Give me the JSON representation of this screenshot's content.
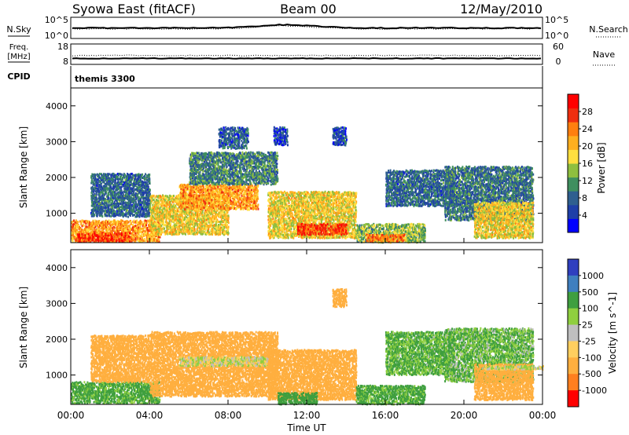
{
  "header": {
    "station": "Syowa East (fitACF)",
    "beam": "Beam 00",
    "date": "12/May/2010"
  },
  "top_panels": {
    "nsky_label": "N.Sky",
    "nsky_ticks": [
      "10^5",
      "10^0"
    ],
    "nsearch_label": "N.Search",
    "nsearch_ticks": [
      "10^5",
      "10^0"
    ],
    "freq_label_1": "Freq.",
    "freq_label_2": "[MHz]",
    "freq_ticks": [
      "18",
      "8"
    ],
    "nave_label": "Nave",
    "nave_ticks": [
      "60",
      "0"
    ],
    "cpid_label": "CPID",
    "cpid_value": "themis 3300"
  },
  "colors": {
    "power_scale": [
      "#0000ff",
      "#1f3fa8",
      "#2f5f8f",
      "#3f8f5f",
      "#8fbf3f",
      "#ffdf3f",
      "#ffaf1f",
      "#ff7f0f",
      "#ef2f0f",
      "#ff0000"
    ],
    "velocity_scale": [
      "#2f3fbf",
      "#3f7fbf",
      "#3f9f3f",
      "#8fcf3f",
      "#bfbfbf",
      "#ffcf5f",
      "#ffaf3f",
      "#ff7f1f",
      "#ff0000"
    ]
  },
  "chart_data": [
    {
      "type": "heatmap",
      "name": "power",
      "ylabel": "Slant Range [km]",
      "colorbar_label": "Power [dB]",
      "colorbar_ticks": [
        "28",
        "24",
        "20",
        "16",
        "12",
        "8",
        "4"
      ],
      "colorbar_range": [
        0,
        32
      ],
      "x_range_hours": [
        0,
        24
      ],
      "y_range_km": [
        180,
        4500
      ],
      "y_ticks": [
        "1000",
        "2000",
        "3000",
        "4000"
      ],
      "regions": [
        {
          "t": [
            0.0,
            4.5
          ],
          "r": [
            200,
            800
          ],
          "v": 22
        },
        {
          "t": [
            0.3,
            3.0
          ],
          "r": [
            200,
            450
          ],
          "v": 27
        },
        {
          "t": [
            1.0,
            4.0
          ],
          "r": [
            900,
            2100
          ],
          "v": 8
        },
        {
          "t": [
            4.0,
            8.0
          ],
          "r": [
            400,
            1500
          ],
          "v": 18
        },
        {
          "t": [
            5.5,
            9.5
          ],
          "r": [
            1100,
            1800
          ],
          "v": 22
        },
        {
          "t": [
            6.0,
            10.5
          ],
          "r": [
            1800,
            2700
          ],
          "v": 10
        },
        {
          "t": [
            10.0,
            14.5
          ],
          "r": [
            300,
            1600
          ],
          "v": 18
        },
        {
          "t": [
            11.5,
            14.0
          ],
          "r": [
            400,
            700
          ],
          "v": 27
        },
        {
          "t": [
            10.3,
            11.0
          ],
          "r": [
            2900,
            3400
          ],
          "v": 6
        },
        {
          "t": [
            13.3,
            14.0
          ],
          "r": [
            2900,
            3400
          ],
          "v": 6
        },
        {
          "t": [
            14.5,
            18.0
          ],
          "r": [
            180,
            700
          ],
          "v": 14
        },
        {
          "t": [
            15.0,
            17.0
          ],
          "r": [
            200,
            400
          ],
          "v": 24
        },
        {
          "t": [
            16.0,
            19.5
          ],
          "r": [
            1200,
            2200
          ],
          "v": 8
        },
        {
          "t": [
            19.0,
            23.5
          ],
          "r": [
            800,
            2300
          ],
          "v": 9
        },
        {
          "t": [
            20.5,
            23.5
          ],
          "r": [
            300,
            1300
          ],
          "v": 18
        },
        {
          "t": [
            7.5,
            9.0
          ],
          "r": [
            2800,
            3400
          ],
          "v": 7
        }
      ]
    },
    {
      "type": "heatmap",
      "name": "velocity",
      "ylabel": "Slant Range [km]",
      "xlabel": "Time UT",
      "colorbar_label": "Velocity [m s^-1]",
      "colorbar_ticks": [
        "1000",
        "500",
        "100",
        "25",
        "-25",
        "-100",
        "-500",
        "-1000"
      ],
      "colorbar_range": [
        -1000,
        1000
      ],
      "x_range_hours": [
        0,
        24
      ],
      "x_ticks": [
        "00:00",
        "04:00",
        "08:00",
        "12:00",
        "16:00",
        "20:00",
        "00:00"
      ],
      "y_range_km": [
        180,
        4500
      ],
      "y_ticks": [
        "1000",
        "2000",
        "3000",
        "4000"
      ],
      "regions": [
        {
          "t": [
            0.0,
            4.5
          ],
          "r": [
            200,
            800
          ],
          "v": 150
        },
        {
          "t": [
            1.0,
            4.0
          ],
          "r": [
            800,
            2100
          ],
          "v": -250
        },
        {
          "t": [
            4.0,
            10.5
          ],
          "r": [
            400,
            2200
          ],
          "v": -350
        },
        {
          "t": [
            5.5,
            10.0
          ],
          "r": [
            1250,
            1500
          ],
          "v": 0
        },
        {
          "t": [
            10.0,
            14.5
          ],
          "r": [
            300,
            1700
          ],
          "v": -350
        },
        {
          "t": [
            10.5,
            12.5
          ],
          "r": [
            180,
            500
          ],
          "v": 200
        },
        {
          "t": [
            13.3,
            14.0
          ],
          "r": [
            2900,
            3400
          ],
          "v": -400
        },
        {
          "t": [
            14.5,
            18.0
          ],
          "r": [
            180,
            700
          ],
          "v": 150
        },
        {
          "t": [
            16.0,
            19.5
          ],
          "r": [
            1000,
            2200
          ],
          "v": 120
        },
        {
          "t": [
            19.0,
            23.5
          ],
          "r": [
            800,
            2300
          ],
          "v": 100
        },
        {
          "t": [
            20.5,
            23.5
          ],
          "r": [
            300,
            1300
          ],
          "v": -200
        },
        {
          "t": [
            21.0,
            24.0
          ],
          "r": [
            1150,
            1250
          ],
          "v": 0
        }
      ]
    }
  ]
}
